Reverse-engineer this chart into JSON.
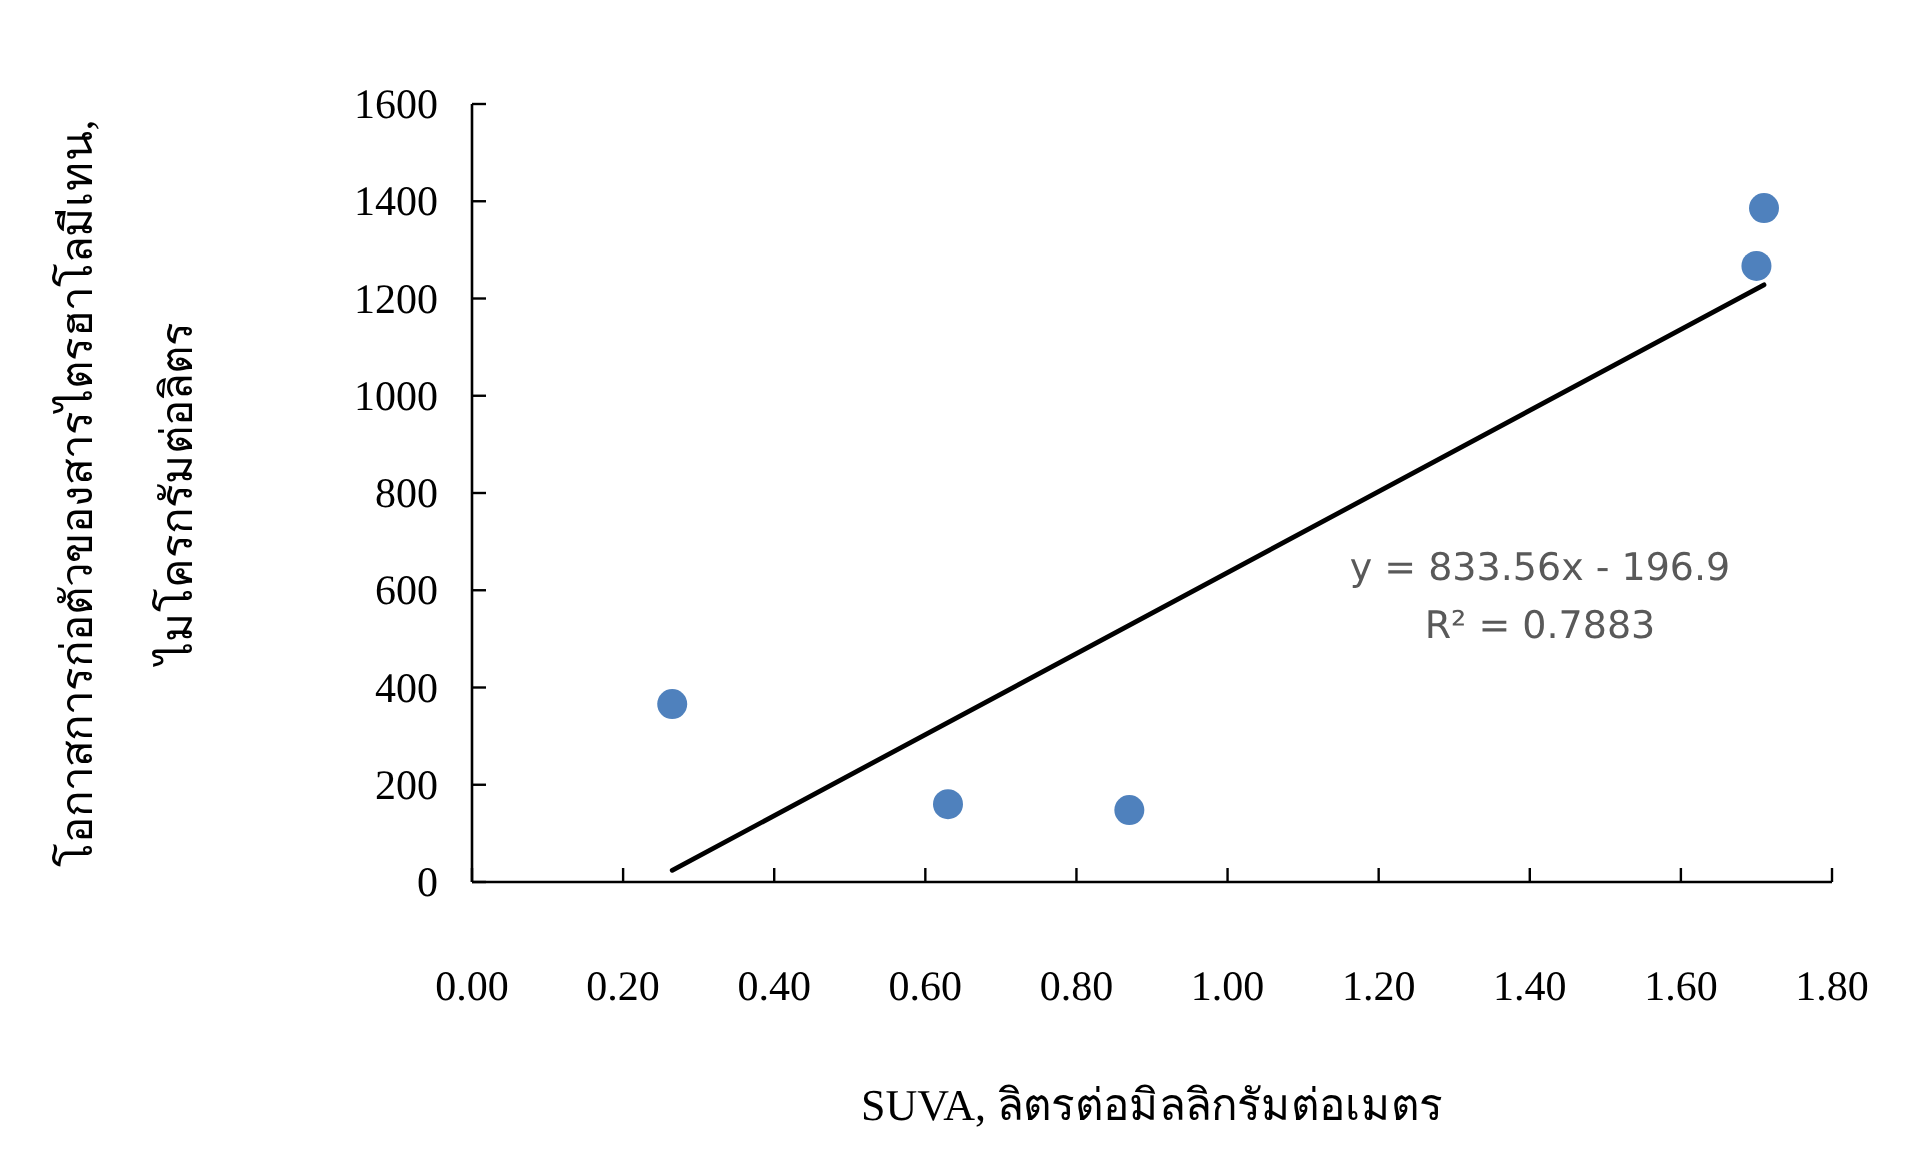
{
  "chart_data": {
    "type": "scatter",
    "xlabel": "SUVA, ลิตรต่อมิลลิกรัมต่อเมตร",
    "ylabel": "โอกาสการก่อตัวของสารไตรฮาโลมีเทน,\nไมโครกรัมต่อลิตร",
    "xlim": [
      0,
      1.8
    ],
    "xticks": [
      {
        "value": 0,
        "label": "0.00"
      },
      {
        "value": 0.2,
        "label": "0.20"
      },
      {
        "value": 0.4,
        "label": "0.40"
      },
      {
        "value": 0.6,
        "label": "0.60"
      },
      {
        "value": 0.8,
        "label": "0.80"
      },
      {
        "value": 1,
        "label": "1.00"
      },
      {
        "value": 1.2,
        "label": "1.20"
      },
      {
        "value": 1.4,
        "label": "1.40"
      },
      {
        "value": 1.6,
        "label": "1.60"
      },
      {
        "value": 1.8,
        "label": "1.80"
      }
    ],
    "ylim": [
      0,
      1600
    ],
    "yticks": [
      0,
      200,
      400,
      600,
      800,
      1000,
      1200,
      1400,
      1600
    ],
    "grid": false,
    "series": [
      {
        "marker": "circle",
        "color": "#4f81bd",
        "x": [
          0.265,
          0.63,
          0.87,
          1.7,
          1.71
        ],
        "values": [
          366,
          160,
          148,
          1267,
          1386
        ]
      },
      {
        "type": "line",
        "marker": "none",
        "line_style": "solid",
        "color": "#000000",
        "x": [
          0.265,
          1.71
        ],
        "values": [
          24,
          1228
        ]
      }
    ],
    "annotations": [
      "y = 833.56x - 196.9",
      "R² = 0.7883"
    ]
  }
}
